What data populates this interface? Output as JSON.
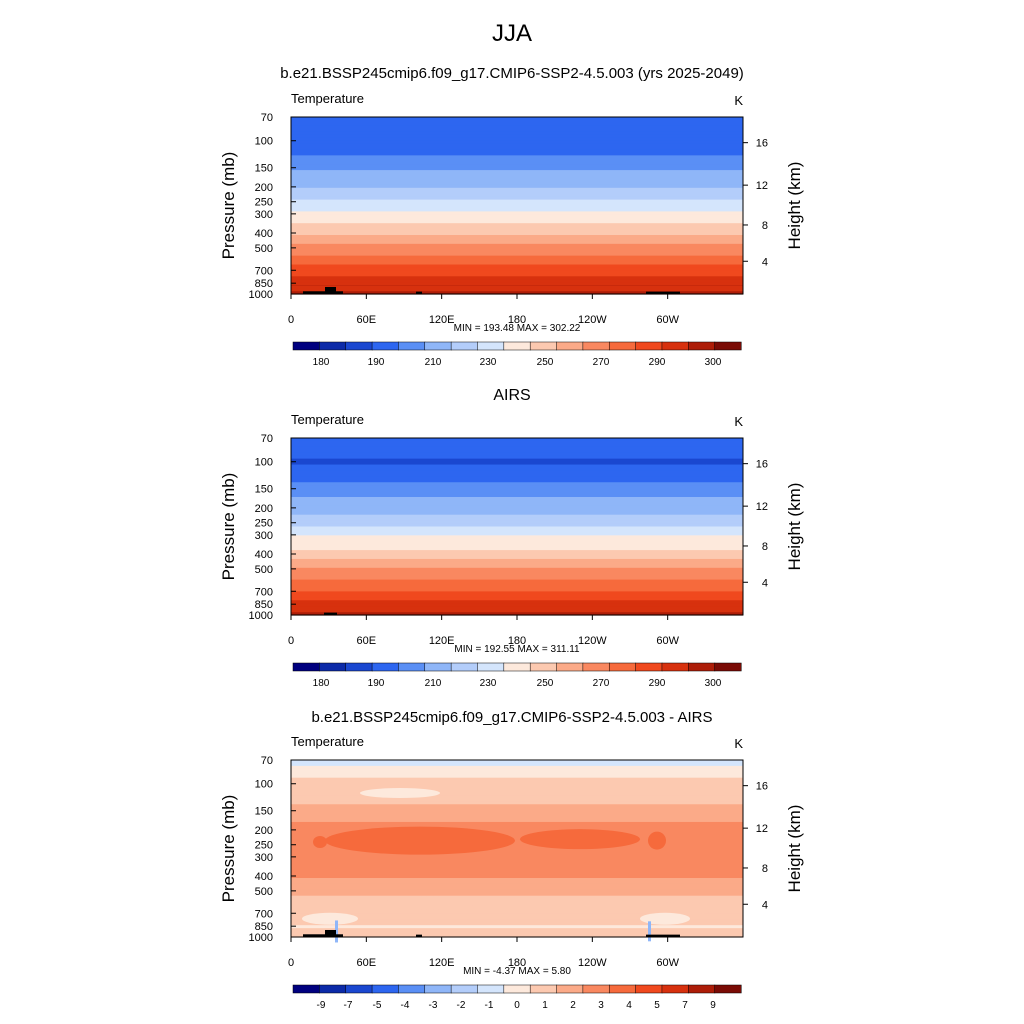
{
  "title": "JJA",
  "units": "K",
  "panels": [
    {
      "id": "model",
      "title": "b.e21.BSSP245cmip6.f09_g17.CMIP6-SSP2-4.5.003 (yrs 2025-2049)",
      "left_label": "Temperature",
      "right_label": "K",
      "stats": "MIN = 193.48  MAX = 302.22"
    },
    {
      "id": "obs",
      "title": "AIRS",
      "left_label": "Temperature",
      "right_label": "K",
      "stats": "MIN = 192.55  MAX = 311.11"
    },
    {
      "id": "diff",
      "title": "b.e21.BSSP245cmip6.f09_g17.CMIP6-SSP2-4.5.003 - AIRS",
      "left_label": "Temperature",
      "right_label": "K",
      "stats": "MIN =  -4.37  MAX =   5.80"
    }
  ],
  "axes": {
    "ylabel": "Pressure (mb)",
    "y2label": "Height (km)",
    "x_ticks": [
      "0",
      "60E",
      "120E",
      "180",
      "120W",
      "60W"
    ],
    "y_ticks": [
      "70",
      "100",
      "150",
      "200",
      "250",
      "300",
      "400",
      "500",
      "700",
      "850",
      "1000"
    ],
    "y2_ticks": [
      "16",
      "12",
      "8",
      "4"
    ]
  },
  "colorbars": {
    "temperature": {
      "colors": [
        "#00007f",
        "#0c2aa8",
        "#1a47d0",
        "#2d66f0",
        "#5a8ff5",
        "#8fb6f8",
        "#b3cdfa",
        "#d4e5fc",
        "#fde9dc",
        "#fcc9b0",
        "#fbaa88",
        "#f98860",
        "#f66a3c",
        "#f0491e",
        "#d7310e",
        "#ad1d08",
        "#7a0b05"
      ],
      "labels": [
        "180",
        "190",
        "210",
        "230",
        "250",
        "270",
        "290",
        "300"
      ]
    },
    "difference": {
      "colors": [
        "#00007f",
        "#0c2aa8",
        "#1a47d0",
        "#2d66f0",
        "#5a8ff5",
        "#8fb6f8",
        "#b3cdfa",
        "#d4e5fc",
        "#fde9dc",
        "#fcc9b0",
        "#fbaa88",
        "#f98860",
        "#f66a3c",
        "#f0491e",
        "#d7310e",
        "#ad1d08",
        "#7a0b05"
      ],
      "labels": [
        "-9",
        "-7",
        "-5",
        "-4",
        "-3",
        "-2",
        "-1",
        "0",
        "1",
        "2",
        "3",
        "4",
        "5",
        "7",
        "9"
      ]
    }
  },
  "chart_data": [
    {
      "type": "heatmap",
      "title": "b.e21.BSSP245cmip6.f09_g17.CMIP6-SSP2-4.5.003 (yrs 2025-2049)",
      "xlabel": "",
      "ylabel": "Pressure (mb)",
      "x_categories": [
        "0",
        "60E",
        "120E",
        "180",
        "120W",
        "60W"
      ],
      "y_pressure_levels": [
        70,
        100,
        150,
        200,
        250,
        300,
        400,
        500,
        700,
        850,
        1000
      ],
      "values_by_pressure": [
        {
          "p": 70,
          "value": 203
        },
        {
          "p": 100,
          "value": 198
        },
        {
          "p": 150,
          "value": 212
        },
        {
          "p": 200,
          "value": 221
        },
        {
          "p": 250,
          "value": 229
        },
        {
          "p": 300,
          "value": 237
        },
        {
          "p": 400,
          "value": 250
        },
        {
          "p": 500,
          "value": 262
        },
        {
          "p": 700,
          "value": 278
        },
        {
          "p": 850,
          "value": 288
        },
        {
          "p": 1000,
          "value": 296
        }
      ],
      "min": 193.48,
      "max": 302.22,
      "units": "K"
    },
    {
      "type": "heatmap",
      "title": "AIRS",
      "xlabel": "",
      "ylabel": "Pressure (mb)",
      "x_categories": [
        "0",
        "60E",
        "120E",
        "180",
        "120W",
        "60W"
      ],
      "y_pressure_levels": [
        70,
        100,
        150,
        200,
        250,
        300,
        400,
        500,
        700,
        850,
        1000
      ],
      "values_by_pressure": [
        {
          "p": 70,
          "value": 204
        },
        {
          "p": 100,
          "value": 197
        },
        {
          "p": 150,
          "value": 209
        },
        {
          "p": 200,
          "value": 218
        },
        {
          "p": 250,
          "value": 226
        },
        {
          "p": 300,
          "value": 235
        },
        {
          "p": 400,
          "value": 247
        },
        {
          "p": 500,
          "value": 259
        },
        {
          "p": 700,
          "value": 275
        },
        {
          "p": 850,
          "value": 286
        },
        {
          "p": 1000,
          "value": 295
        }
      ],
      "min": 192.55,
      "max": 311.11,
      "units": "K"
    },
    {
      "type": "heatmap",
      "title": "b.e21.BSSP245cmip6.f09_g17.CMIP6-SSP2-4.5.003 - AIRS",
      "xlabel": "",
      "ylabel": "Pressure (mb)",
      "x_categories": [
        "0",
        "60E",
        "120E",
        "180",
        "120W",
        "60W"
      ],
      "y_pressure_levels": [
        70,
        100,
        150,
        200,
        250,
        300,
        400,
        500,
        700,
        850,
        1000
      ],
      "values_by_pressure": [
        {
          "p": 70,
          "value": -1
        },
        {
          "p": 100,
          "value": 1
        },
        {
          "p": 150,
          "value": 2
        },
        {
          "p": 200,
          "value": 3.5
        },
        {
          "p": 250,
          "value": 4
        },
        {
          "p": 300,
          "value": 3.5
        },
        {
          "p": 400,
          "value": 3
        },
        {
          "p": 500,
          "value": 2
        },
        {
          "p": 700,
          "value": 1
        },
        {
          "p": 850,
          "value": 0.5
        },
        {
          "p": 1000,
          "value": 1
        }
      ],
      "min": -4.37,
      "max": 5.8,
      "units": "K"
    }
  ]
}
